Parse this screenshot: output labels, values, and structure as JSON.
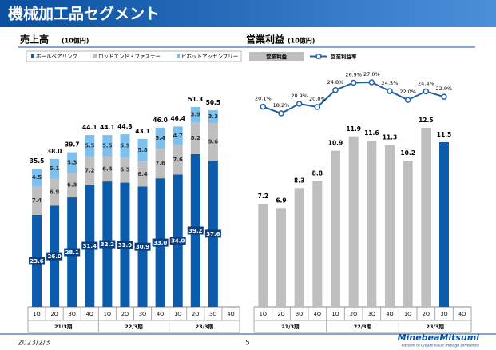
{
  "header": {
    "title": "機械加工品セグメント"
  },
  "chart_data": [
    {
      "type": "stacked_bar",
      "title": "売上高",
      "unit": "(10億円)",
      "categories": [
        "1Q",
        "2Q",
        "3Q",
        "4Q",
        "1Q",
        "2Q",
        "3Q",
        "4Q",
        "1Q",
        "2Q",
        "3Q",
        "4Q"
      ],
      "period_labels": [
        "21/3期",
        "22/3期",
        "23/3期"
      ],
      "series": [
        {
          "name": "ボールベアリング",
          "color": "#0b5cad",
          "values": [
            23.6,
            26.0,
            28.1,
            31.4,
            32.2,
            31.9,
            30.9,
            33.0,
            34.0,
            39.2,
            37.6,
            null
          ],
          "value_labels": [
            "23.6",
            "26.0",
            "28.1",
            "31.4",
            "32.2",
            "31.9",
            "30.9",
            "33.0",
            "34.0",
            "39.2",
            "37.6",
            null
          ]
        },
        {
          "name": "ロッドエンド・ファスナー",
          "color": "#bfbfbf",
          "values": [
            7.4,
            6.9,
            6.3,
            7.2,
            6.4,
            6.5,
            6.4,
            7.6,
            7.6,
            8.2,
            9.6,
            null
          ]
        },
        {
          "name": "ピボットアッセンブリー",
          "color": "#7cc0ef",
          "values": [
            4.5,
            5.1,
            5.3,
            5.5,
            5.5,
            5.9,
            5.8,
            5.4,
            4.7,
            3.9,
            3.3,
            null
          ]
        }
      ],
      "totals": [
        35.5,
        38.0,
        39.7,
        44.1,
        44.1,
        44.3,
        43.1,
        46.0,
        46.4,
        51.3,
        50.5,
        null
      ],
      "total_labels": [
        "35.5",
        "38.0",
        "39.7",
        "44.1",
        "44.1",
        "44.3",
        "43.1",
        "46.0",
        "46.4",
        "51.3",
        "50.5",
        null
      ]
    },
    {
      "type": "bar_line",
      "title": "営業利益",
      "unit": "(10億円)",
      "categories": [
        "1Q",
        "2Q",
        "3Q",
        "4Q",
        "1Q",
        "2Q",
        "3Q",
        "4Q",
        "1Q",
        "2Q",
        "3Q",
        "4Q"
      ],
      "period_labels": [
        "21/3期",
        "22/3期",
        "23/3期"
      ],
      "series": [
        {
          "name": "営業利益",
          "color": "#bfbfbf",
          "colors": [
            "#bfbfbf",
            "#bfbfbf",
            "#bfbfbf",
            "#bfbfbf",
            "#bfbfbf",
            "#bfbfbf",
            "#bfbfbf",
            "#bfbfbf",
            "#bfbfbf",
            "#bfbfbf",
            "#0b5cad",
            "#bfbfbf"
          ],
          "values": [
            7.2,
            6.9,
            8.3,
            8.8,
            10.9,
            11.9,
            11.6,
            11.3,
            10.2,
            12.5,
            11.5,
            null
          ]
        },
        {
          "name": "営業利益率",
          "color": "#1f5fa8",
          "values": [
            20.1,
            18.2,
            20.9,
            20.0,
            24.8,
            26.9,
            27.0,
            24.5,
            22.0,
            24.4,
            22.9,
            null
          ],
          "value_labels": [
            "20.1%",
            "18.2%",
            "20.9%",
            "20.0%",
            "24.8%",
            "26.9%",
            "27.0%",
            "24.5%",
            "22.0%",
            "24.4%",
            "22.9%",
            null
          ]
        }
      ]
    }
  ],
  "footer": {
    "date": "2023/2/3",
    "page": "5",
    "logo": "MinebeaMitsumi",
    "tagline": "Passion to Create Value through Difference"
  }
}
